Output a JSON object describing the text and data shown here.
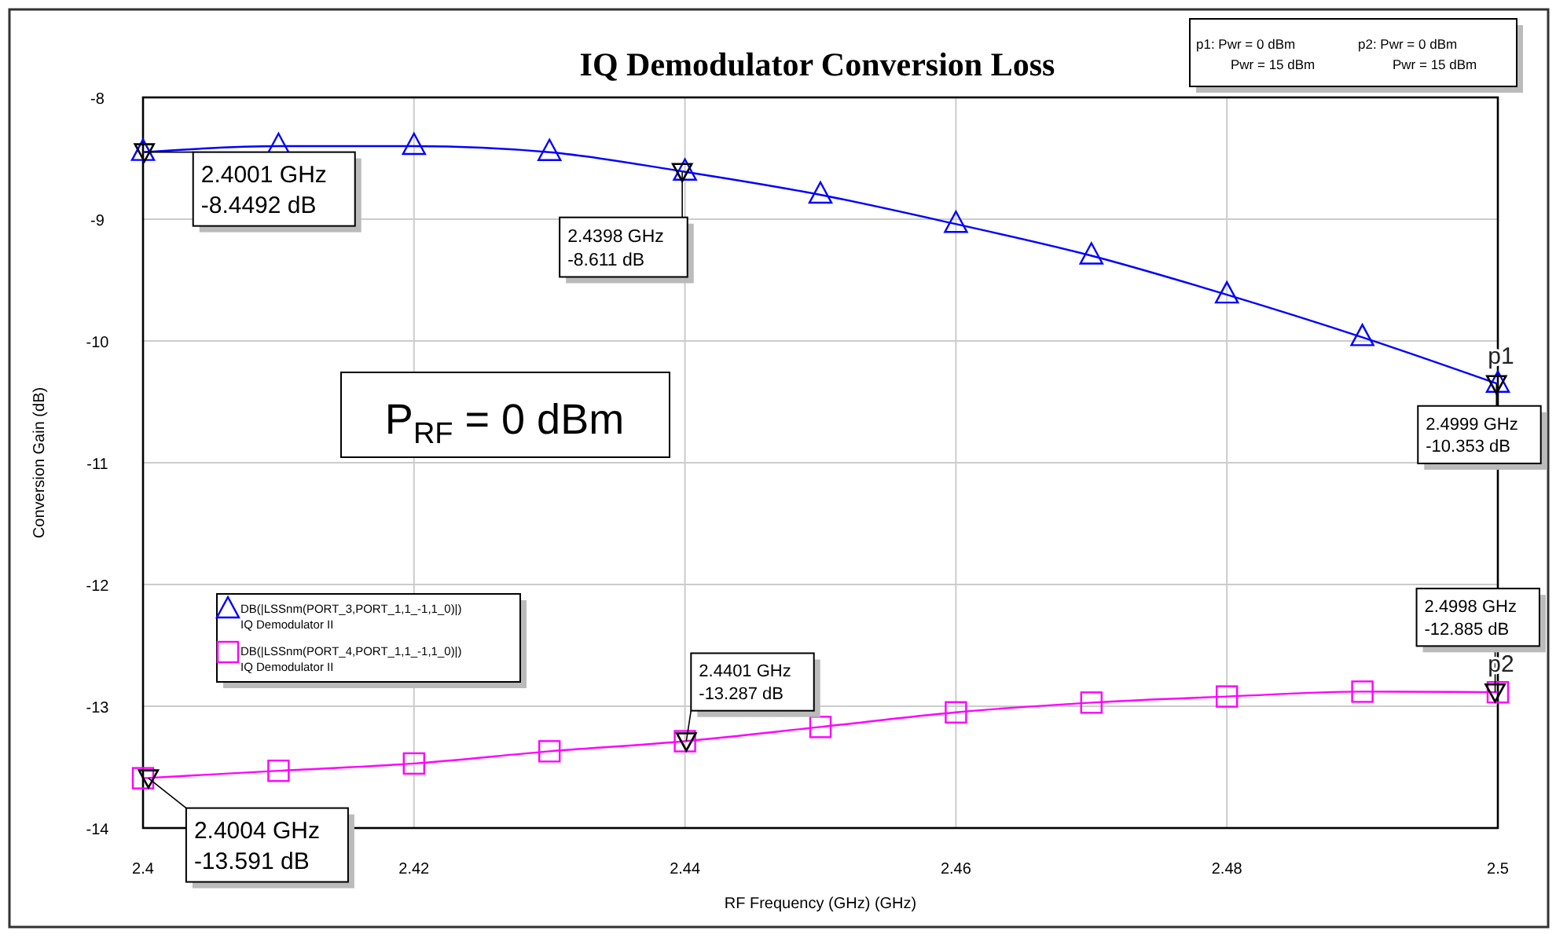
{
  "chart_data": {
    "type": "line",
    "title": "IQ Demodulator Conversion Loss",
    "xlabel": "RF Frequency (GHz) (GHz)",
    "ylabel": "Conversion Gain (dB)",
    "x": [
      2.4,
      2.41,
      2.42,
      2.43,
      2.44,
      2.45,
      2.46,
      2.47,
      2.48,
      2.49,
      2.5
    ],
    "series": [
      {
        "name": "DB(|LSSnm(PORT_3,PORT_1,1_-1,1_0)|)\nIQ Demodulator II",
        "color": "#0000ff",
        "marker": "triangle",
        "values": [
          -8.4492,
          -8.4,
          -8.4,
          -8.45,
          -8.611,
          -8.8,
          -9.04,
          -9.3,
          -9.62,
          -9.97,
          -10.353
        ]
      },
      {
        "name": "DB(|LSSnm(PORT_4,PORT_1,1_-1,1_0)|)\nIQ Demodulator II",
        "color": "#ff00ff",
        "marker": "square",
        "values": [
          -13.591,
          -13.53,
          -13.47,
          -13.37,
          -13.287,
          -13.17,
          -13.05,
          -12.97,
          -12.92,
          -12.88,
          -12.885
        ]
      }
    ],
    "xlim": [
      2.4,
      2.5
    ],
    "xticks": [
      2.4,
      2.42,
      2.44,
      2.46,
      2.48,
      2.5
    ],
    "ylim": [
      -14,
      -8
    ],
    "yticks": [
      -8,
      -9,
      -10,
      -11,
      -12,
      -13,
      -14
    ],
    "grid": true,
    "legend": "bottom left",
    "line_style": "solid",
    "annotations": [
      {
        "text": "2.4001 GHz\n-8.4492 dB",
        "x": 2.4001,
        "y": -8.4492
      },
      {
        "text": "2.4398 GHz\n-8.611 dB",
        "x": 2.4398,
        "y": -8.611
      },
      {
        "text": "2.4999 GHz\n-10.353 dB",
        "x": 2.4999,
        "y": -10.353
      },
      {
        "text": "2.4004 GHz\n-13.591 dB",
        "x": 2.4004,
        "y": -13.591
      },
      {
        "text": "2.4401 GHz\n-13.287 dB",
        "x": 2.4401,
        "y": -13.287
      },
      {
        "text": "2.4998 GHz\n-12.885 dB",
        "x": 2.4998,
        "y": -12.885
      },
      {
        "text": "p1",
        "x": 2.5,
        "y": -10.353
      },
      {
        "text": "p2",
        "x": 2.5,
        "y": -12.885
      },
      "P$_{RF}$ = 0 dBm",
      "p1: Pwr = 0 dBm\nPwr = 15 dBm",
      "p2: Pwr = 0 dBm\nPwr = 15 dBm"
    ]
  }
}
